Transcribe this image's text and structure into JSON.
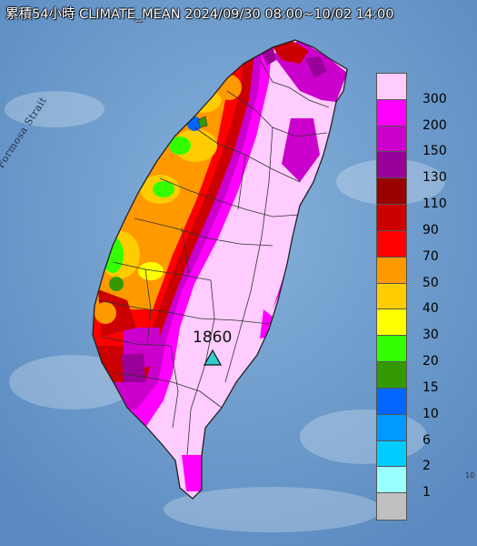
{
  "title": "累積54小時 CLIMATE_MEAN 2024/09/30 08:00~10/02 14:00",
  "strait_label": "Formosa Strait",
  "max_station": {
    "value": "1860"
  },
  "legend": {
    "items": [
      {
        "label": "300",
        "color": "#ffccff"
      },
      {
        "label": "200",
        "color": "#ff00ff"
      },
      {
        "label": "150",
        "color": "#cc00cc"
      },
      {
        "label": "130",
        "color": "#990099"
      },
      {
        "label": "110",
        "color": "#990000"
      },
      {
        "label": "90",
        "color": "#cc0000"
      },
      {
        "label": "70",
        "color": "#ff0000"
      },
      {
        "label": "50",
        "color": "#ff9900"
      },
      {
        "label": "40",
        "color": "#ffcc00"
      },
      {
        "label": "30",
        "color": "#ffff00"
      },
      {
        "label": "20",
        "color": "#33ff00"
      },
      {
        "label": "15",
        "color": "#339900"
      },
      {
        "label": "10",
        "color": "#0066ff"
      },
      {
        "label": "6",
        "color": "#0099ff"
      },
      {
        "label": "2",
        "color": "#00ccff"
      },
      {
        "label": "1",
        "color": "#99ffff"
      },
      {
        "label": "",
        "color": "#c0c0c0"
      }
    ]
  },
  "corner_text": "10"
}
